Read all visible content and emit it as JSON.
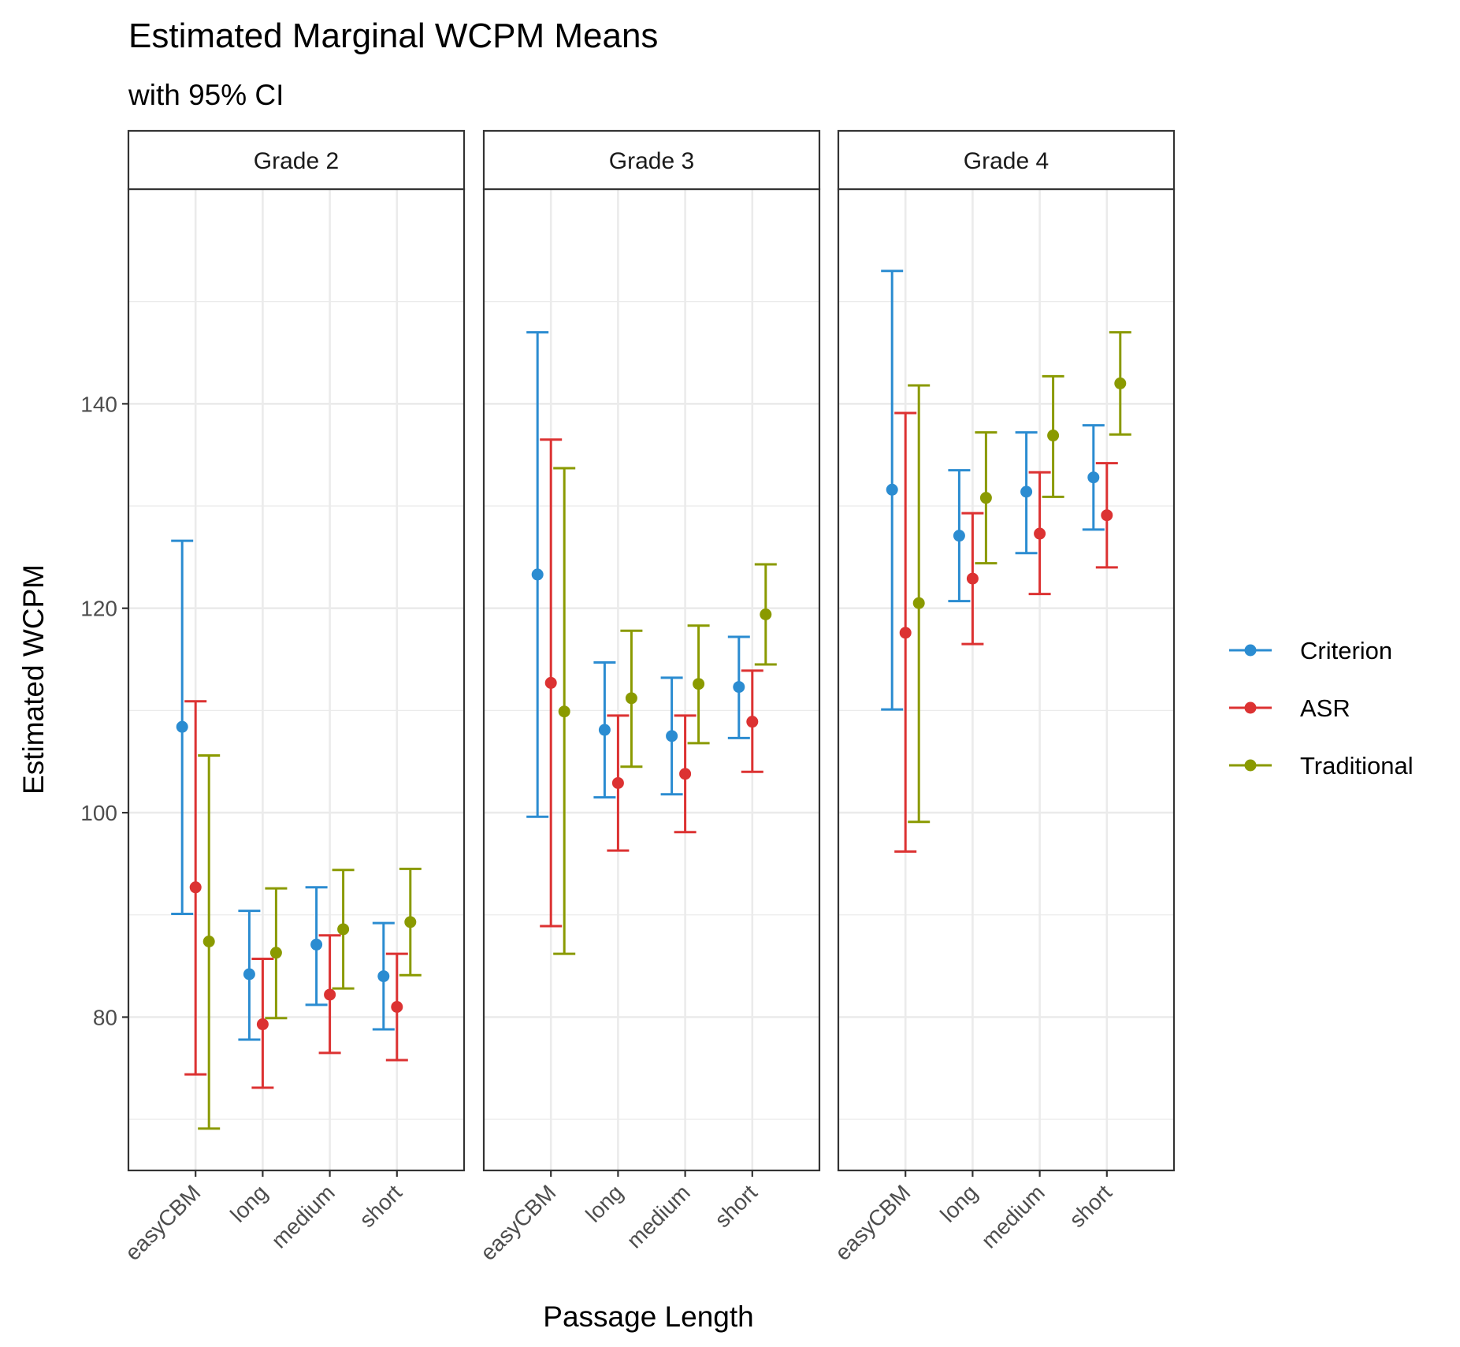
{
  "chart_data": {
    "type": "errorbar",
    "title": "Estimated Marginal WCPM Means",
    "subtitle": "with 95% CI",
    "xlabel": "Passage Length",
    "ylabel": "Estimated WCPM",
    "ylim": [
      65,
      161
    ],
    "y_ticks": [
      80,
      100,
      120,
      140
    ],
    "grid": true,
    "legend_position": "right",
    "categories": [
      "easyCBM",
      "long",
      "medium",
      "short"
    ],
    "panels": [
      {
        "label": "Grade 2",
        "series": [
          {
            "name": "Criterion",
            "color": "#2b8cd1",
            "mean": [
              108.4,
              84.2,
              87.1,
              84.0
            ],
            "lower": [
              90.1,
              77.8,
              81.2,
              78.8
            ],
            "upper": [
              126.6,
              90.4,
              92.7,
              89.2
            ]
          },
          {
            "name": "ASR",
            "color": "#dc3232",
            "mean": [
              92.7,
              79.3,
              82.2,
              81.0
            ],
            "lower": [
              74.4,
              73.1,
              76.5,
              75.8
            ],
            "upper": [
              110.9,
              85.7,
              88.0,
              86.2
            ]
          },
          {
            "name": "Traditional",
            "color": "#8a9a00",
            "mean": [
              87.4,
              86.3,
              88.6,
              89.3
            ],
            "lower": [
              69.1,
              79.9,
              82.8,
              84.1
            ],
            "upper": [
              105.6,
              92.6,
              94.4,
              94.5
            ]
          }
        ]
      },
      {
        "label": "Grade 3",
        "series": [
          {
            "name": "Criterion",
            "color": "#2b8cd1",
            "mean": [
              123.3,
              108.1,
              107.5,
              112.3
            ],
            "lower": [
              99.6,
              101.5,
              101.8,
              107.3
            ],
            "upper": [
              147.0,
              114.7,
              113.2,
              117.2
            ]
          },
          {
            "name": "ASR",
            "color": "#dc3232",
            "mean": [
              112.7,
              102.9,
              103.8,
              108.9
            ],
            "lower": [
              88.9,
              96.3,
              98.1,
              104.0
            ],
            "upper": [
              136.5,
              109.5,
              109.5,
              113.9
            ]
          },
          {
            "name": "Traditional",
            "color": "#8a9a00",
            "mean": [
              109.9,
              111.2,
              112.6,
              119.4
            ],
            "lower": [
              86.2,
              104.5,
              106.8,
              114.5
            ],
            "upper": [
              133.7,
              117.8,
              118.3,
              124.3
            ]
          }
        ]
      },
      {
        "label": "Grade 4",
        "series": [
          {
            "name": "Criterion",
            "color": "#2b8cd1",
            "mean": [
              131.6,
              127.1,
              131.4,
              132.8
            ],
            "lower": [
              110.1,
              120.7,
              125.4,
              127.7
            ],
            "upper": [
              153.0,
              133.5,
              137.2,
              137.9
            ]
          },
          {
            "name": "ASR",
            "color": "#dc3232",
            "mean": [
              117.6,
              122.9,
              127.3,
              129.1
            ],
            "lower": [
              96.2,
              116.5,
              121.4,
              124.0
            ],
            "upper": [
              139.1,
              129.3,
              133.3,
              134.2
            ]
          },
          {
            "name": "Traditional",
            "color": "#8a9a00",
            "mean": [
              120.5,
              130.8,
              136.9,
              142.0
            ],
            "lower": [
              99.1,
              124.4,
              130.9,
              137.0
            ],
            "upper": [
              141.8,
              137.2,
              142.7,
              147.0
            ]
          }
        ]
      }
    ]
  }
}
